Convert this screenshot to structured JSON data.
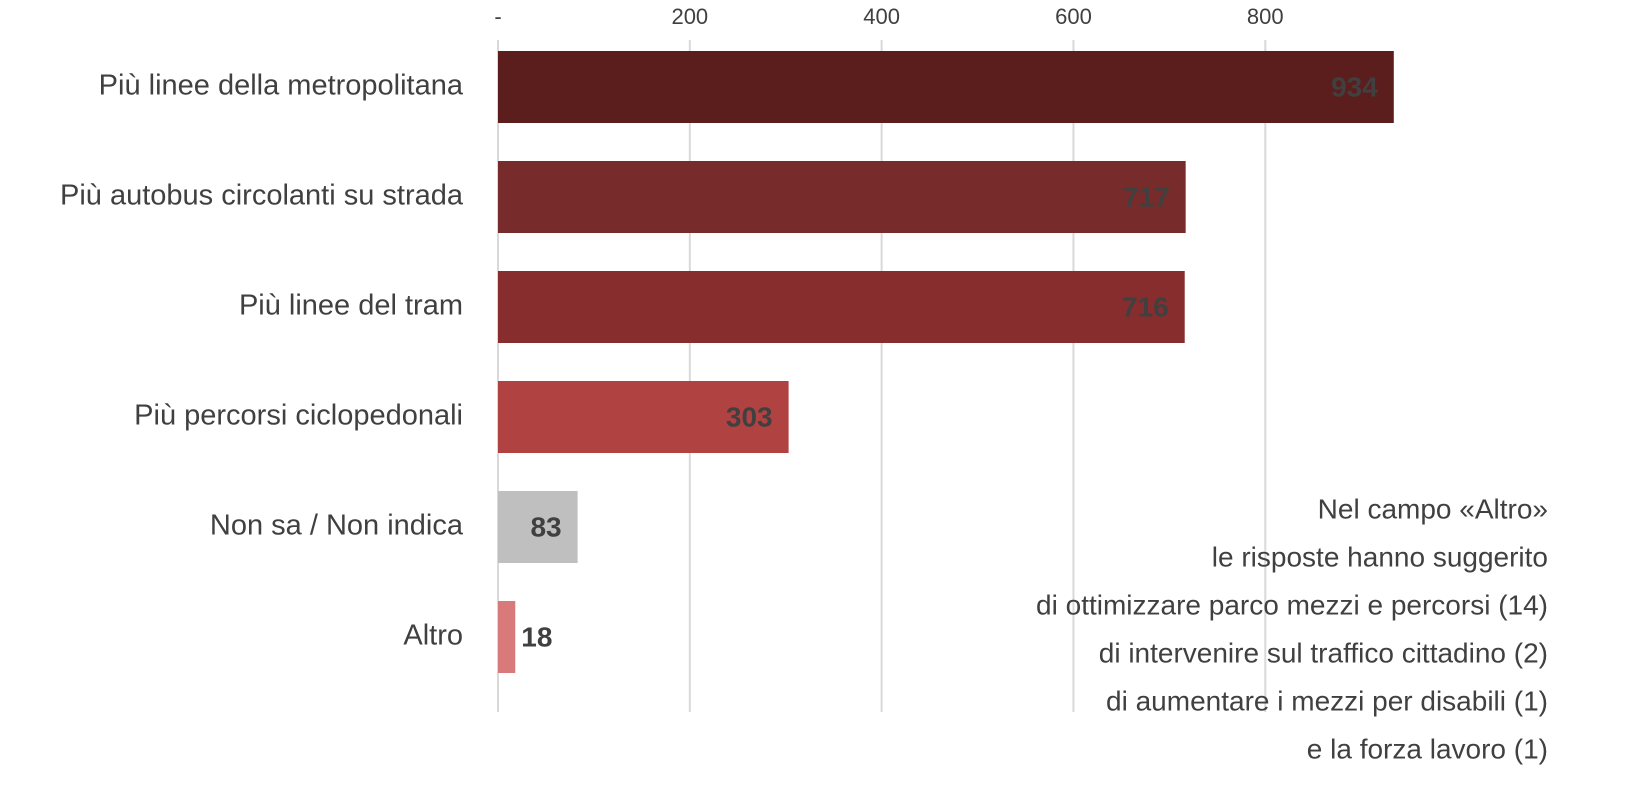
{
  "chart_data": {
    "type": "hbar",
    "categories": [
      "Più linee della metropolitana",
      "Più autobus circolanti su strada",
      "Più linee del tram",
      "Più percorsi ciclopedonali",
      "Non sa / Non indica",
      "Altro"
    ],
    "values": [
      934,
      717,
      716,
      303,
      83,
      18
    ],
    "colors": [
      "#5c1d1d",
      "#772b2b",
      "#882d2d",
      "#b04242",
      "#bfbfbf",
      "#d97a7a"
    ],
    "value_label_colors": [
      "#ffffff",
      "#ffffff",
      "#ffffff",
      "#ffffff",
      "#ffffff",
      "#9b2d2d"
    ],
    "xlim": [
      0,
      1100
    ],
    "xticks": [
      {
        "value": 0,
        "label": "-"
      },
      200,
      400,
      600,
      800
    ],
    "grid": true,
    "annotation": [
      "Nel campo «Altro»",
      "le risposte hanno suggerito",
      "di ottimizzare parco mezzi e percorsi (14)",
      "di intervenire sul traffico cittadino (2)",
      "di aumentare i mezzi per disabili (1)",
      "e la forza lavoro (1)"
    ]
  }
}
